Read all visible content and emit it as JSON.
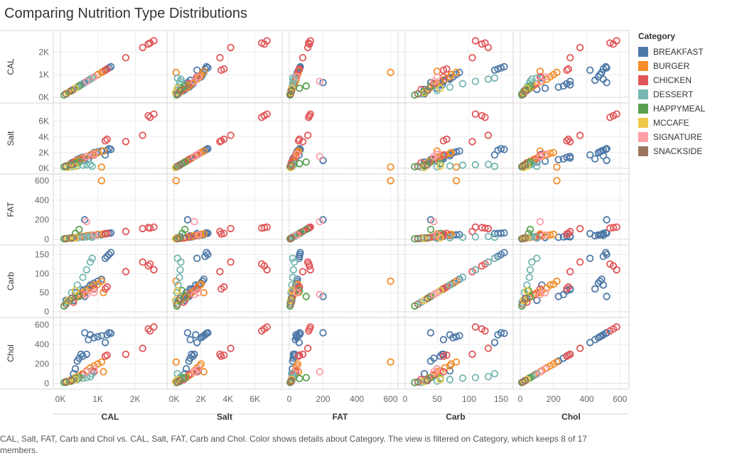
{
  "chart_data": {
    "type": "scatter",
    "title": "Comparing Nutrition Type Distributions",
    "layout": "scatter-matrix",
    "measures": [
      "CAL",
      "Salt",
      "FAT",
      "Carb",
      "Chol"
    ],
    "ranges": {
      "CAL": {
        "min": 0,
        "max": 2700,
        "ticks": [
          0,
          1000,
          2000
        ],
        "tick_labels": [
          "0K",
          "1K",
          "2K"
        ]
      },
      "Salt": {
        "min": 0,
        "max": 7600,
        "ticks": [
          0,
          2000,
          4000,
          6000
        ],
        "tick_labels": [
          "0K",
          "2K",
          "4K",
          "6K"
        ]
      },
      "FAT": {
        "min": 0,
        "max": 610,
        "ticks": [
          0,
          200,
          400,
          600
        ],
        "tick_labels": [
          "0",
          "200",
          "400",
          "600"
        ]
      },
      "Carb": {
        "min": 0,
        "max": 160,
        "ticks": [
          0,
          50,
          100,
          150
        ],
        "tick_labels": [
          "0",
          "50",
          "100",
          "150"
        ]
      },
      "Chol": {
        "min": 0,
        "max": 620,
        "ticks": [
          0,
          200,
          400,
          600
        ],
        "tick_labels": [
          "0",
          "200",
          "400",
          "600"
        ]
      }
    },
    "legend": {
      "title": "Category",
      "placement": "right",
      "entries": [
        {
          "name": "BREAKFAST",
          "color": "#4e79a7"
        },
        {
          "name": "BURGER",
          "color": "#f28e2b"
        },
        {
          "name": "CHICKEN",
          "color": "#e15759"
        },
        {
          "name": "DESSERT",
          "color": "#76b7b2"
        },
        {
          "name": "HAPPYMEAL",
          "color": "#59a14f"
        },
        {
          "name": "MCCAFE",
          "color": "#edc948"
        },
        {
          "name": "SIGNATURE",
          "color": "#ff9da7"
        },
        {
          "name": "SNACKSIDE",
          "color": "#9c755f"
        }
      ]
    },
    "records": [
      [
        "BREAKFAST",
        150,
        300,
        8,
        30,
        20
      ],
      [
        "BREAKFAST",
        300,
        700,
        12,
        35,
        40
      ],
      [
        "BREAKFAST",
        450,
        1100,
        20,
        40,
        230
      ],
      [
        "BREAKFAST",
        500,
        1200,
        24,
        45,
        260
      ],
      [
        "BREAKFAST",
        600,
        1400,
        28,
        55,
        280
      ],
      [
        "BREAKFAST",
        700,
        1500,
        32,
        60,
        300
      ],
      [
        "BREAKFAST",
        750,
        1200,
        36,
        60,
        450
      ],
      [
        "BREAKFAST",
        800,
        1600,
        40,
        70,
        500
      ],
      [
        "BREAKFAST",
        650,
        1000,
        200,
        40,
        520
      ],
      [
        "BREAKFAST",
        900,
        2000,
        44,
        75,
        470
      ],
      [
        "BREAKFAST",
        1000,
        2100,
        46,
        80,
        480
      ],
      [
        "BREAKFAST",
        1100,
        2200,
        48,
        85,
        490
      ],
      [
        "BREAKFAST",
        1250,
        2300,
        60,
        145,
        500
      ],
      [
        "BREAKFAST",
        1300,
        2500,
        62,
        150,
        520
      ],
      [
        "BREAKFAST",
        1350,
        2400,
        65,
        155,
        515
      ],
      [
        "BREAKFAST",
        1200,
        1700,
        58,
        140,
        420
      ],
      [
        "BREAKFAST",
        400,
        900,
        18,
        50,
        150
      ],
      [
        "BREAKFAST",
        350,
        800,
        15,
        30,
        100
      ],
      [
        "BREAKFAST",
        550,
        1300,
        25,
        58,
        300
      ],
      [
        "BREAKFAST",
        850,
        1800,
        40,
        70,
        130
      ],
      [
        "BURGER",
        250,
        500,
        10,
        30,
        30
      ],
      [
        "BURGER",
        400,
        900,
        18,
        38,
        60
      ],
      [
        "BURGER",
        500,
        1100,
        25,
        45,
        80
      ],
      [
        "BURGER",
        600,
        1300,
        30,
        50,
        100
      ],
      [
        "BURGER",
        700,
        1500,
        36,
        55,
        130
      ],
      [
        "BURGER",
        800,
        1700,
        40,
        62,
        160
      ],
      [
        "BURGER",
        900,
        1900,
        45,
        70,
        180
      ],
      [
        "BURGER",
        1000,
        2000,
        50,
        72,
        200
      ],
      [
        "BURGER",
        1100,
        150,
        600,
        80,
        220
      ],
      [
        "BURGER",
        1150,
        2200,
        55,
        50,
        120
      ],
      [
        "CHICKEN",
        350,
        700,
        12,
        25,
        40
      ],
      [
        "CHICKEN",
        600,
        1100,
        25,
        45,
        90
      ],
      [
        "CHICKEN",
        900,
        1700,
        40,
        60,
        120
      ],
      [
        "CHICKEN",
        1200,
        3500,
        55,
        60,
        280
      ],
      [
        "CHICKEN",
        1250,
        3700,
        60,
        65,
        290
      ],
      [
        "CHICKEN",
        1750,
        3400,
        80,
        105,
        300
      ],
      [
        "CHICKEN",
        2200,
        4200,
        110,
        130,
        360
      ],
      [
        "CHICKEN",
        2350,
        6700,
        120,
        120,
        560
      ],
      [
        "CHICKEN",
        2500,
        6900,
        125,
        110,
        580
      ],
      [
        "CHICKEN",
        2400,
        6500,
        115,
        125,
        540
      ],
      [
        "DESSERT",
        150,
        150,
        5,
        25,
        10
      ],
      [
        "DESSERT",
        300,
        200,
        10,
        50,
        25
      ],
      [
        "DESSERT",
        450,
        300,
        15,
        70,
        40
      ],
      [
        "DESSERT",
        600,
        400,
        20,
        90,
        55
      ],
      [
        "DESSERT",
        700,
        450,
        25,
        110,
        60
      ],
      [
        "DESSERT",
        800,
        500,
        30,
        130,
        70
      ],
      [
        "DESSERT",
        850,
        250,
        20,
        140,
        100
      ],
      [
        "HAPPYMEAL",
        100,
        200,
        5,
        15,
        10
      ],
      [
        "HAPPYMEAL",
        250,
        400,
        12,
        30,
        20
      ],
      [
        "HAPPYMEAL",
        400,
        600,
        60,
        55,
        50
      ],
      [
        "HAPPYMEAL",
        500,
        800,
        100,
        40,
        60
      ],
      [
        "MCCAFE",
        200,
        100,
        8,
        30,
        20
      ],
      [
        "MCCAFE",
        400,
        250,
        15,
        55,
        40
      ],
      [
        "SIGNATURE",
        700,
        1500,
        180,
        45,
        120
      ],
      [
        "SIGNATURE",
        900,
        1800,
        45,
        50,
        150
      ],
      [
        "SNACKSIDE",
        150,
        250,
        8,
        20,
        15
      ],
      [
        "SNACKSIDE",
        300,
        450,
        14,
        35,
        30
      ]
    ],
    "caption": "CAL, Salt, FAT, Carb and Chol vs. CAL, Salt, FAT, Carb and Chol.  Color shows details about Category. The view is filtered on Category, which keeps 8 of 17 members."
  }
}
